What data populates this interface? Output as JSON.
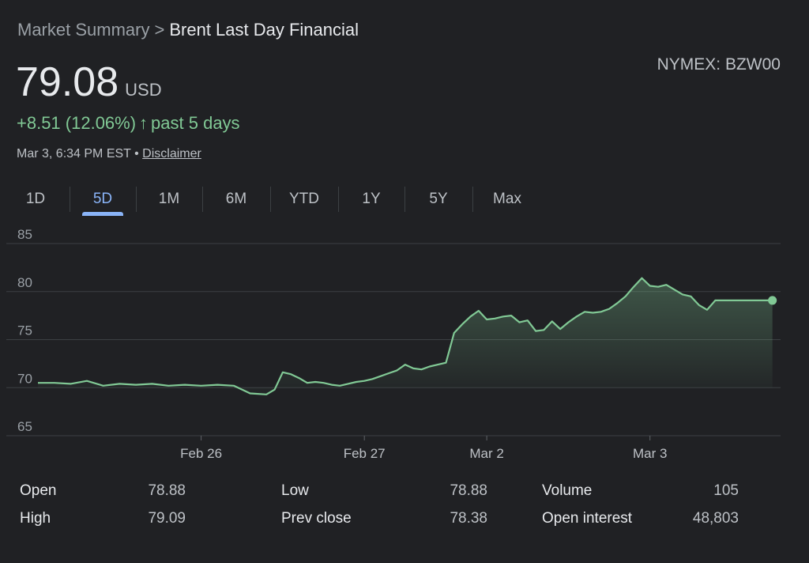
{
  "breadcrumb": {
    "parent": "Market Summary",
    "separator": ">",
    "current": "Brent Last Day Financial"
  },
  "ticker": "NYMEX: BZW00",
  "price": {
    "value": "79.08",
    "currency": "USD"
  },
  "change": {
    "text": "+8.51 (12.06%)",
    "arrow": "↑",
    "period": "past 5 days",
    "color": "#81c995"
  },
  "meta": {
    "timestamp": "Mar 3, 6:34 PM EST",
    "dot": "•",
    "disclaimer": "Disclaimer"
  },
  "tabs": [
    {
      "label": "1D",
      "active": false
    },
    {
      "label": "5D",
      "active": true
    },
    {
      "label": "1M",
      "active": false
    },
    {
      "label": "6M",
      "active": false
    },
    {
      "label": "YTD",
      "active": false
    },
    {
      "label": "1Y",
      "active": false
    },
    {
      "label": "5Y",
      "active": false
    },
    {
      "label": "Max",
      "active": false
    }
  ],
  "chart_data": {
    "type": "area",
    "ylim": [
      65,
      85
    ],
    "yticks": [
      65,
      70,
      75,
      80,
      85
    ],
    "xlim": [
      0,
      4.55
    ],
    "xticks": [
      {
        "label": "Feb 26",
        "x": 1
      },
      {
        "label": "Feb 27",
        "x": 2
      },
      {
        "label": "Mar 2",
        "x": 2.75
      },
      {
        "label": "Mar 3",
        "x": 3.75
      }
    ],
    "grid": true,
    "line_color": "#81c995",
    "series": [
      {
        "x": [
          0,
          0.1,
          0.2,
          0.3,
          0.4,
          0.5,
          0.6,
          0.7,
          0.8,
          0.9,
          1.0,
          1.1,
          1.2,
          1.3,
          1.4,
          1.45,
          1.5,
          1.55,
          1.6,
          1.65,
          1.7,
          1.75,
          1.8,
          1.85,
          1.9,
          1.95,
          2.0,
          2.05,
          2.1,
          2.15,
          2.2,
          2.25,
          2.3,
          2.35,
          2.4,
          2.45,
          2.5,
          2.55,
          2.6,
          2.65,
          2.7,
          2.75,
          2.8,
          2.85,
          2.9,
          2.95,
          3.0,
          3.05,
          3.1,
          3.15,
          3.2,
          3.25,
          3.3,
          3.35,
          3.4,
          3.45,
          3.5,
          3.55,
          3.6,
          3.65,
          3.7,
          3.75,
          3.8,
          3.85,
          3.9,
          3.95,
          4.0,
          4.05,
          4.1,
          4.15,
          4.2,
          4.25,
          4.3,
          4.35,
          4.4,
          4.45,
          4.5
        ],
        "y": [
          70.5,
          70.5,
          70.4,
          70.7,
          70.2,
          70.4,
          70.3,
          70.4,
          70.2,
          70.3,
          70.2,
          70.3,
          70.2,
          69.4,
          69.3,
          69.8,
          71.6,
          71.4,
          71.0,
          70.5,
          70.6,
          70.5,
          70.3,
          70.2,
          70.4,
          70.6,
          70.7,
          70.9,
          71.2,
          71.5,
          71.8,
          72.4,
          72.0,
          71.9,
          72.2,
          72.4,
          72.6,
          75.7,
          76.6,
          77.4,
          78.0,
          77.1,
          77.2,
          77.4,
          77.5,
          76.8,
          77.0,
          75.9,
          76.0,
          76.9,
          76.1,
          76.8,
          77.4,
          77.9,
          77.8,
          77.9,
          78.2,
          78.8,
          79.5,
          80.5,
          81.4,
          80.6,
          80.5,
          80.7,
          80.2,
          79.7,
          79.5,
          78.6,
          78.1,
          79.08,
          79.08,
          79.08,
          79.08,
          79.08,
          79.08,
          79.08,
          79.08
        ]
      }
    ]
  },
  "stats": [
    {
      "label": "Open",
      "value": "78.88"
    },
    {
      "label": "High",
      "value": "79.09"
    },
    {
      "label": "Low",
      "value": "78.88"
    },
    {
      "label": "Prev close",
      "value": "78.38"
    },
    {
      "label": "Volume",
      "value": "105"
    },
    {
      "label": "Open interest",
      "value": "48,803"
    }
  ]
}
